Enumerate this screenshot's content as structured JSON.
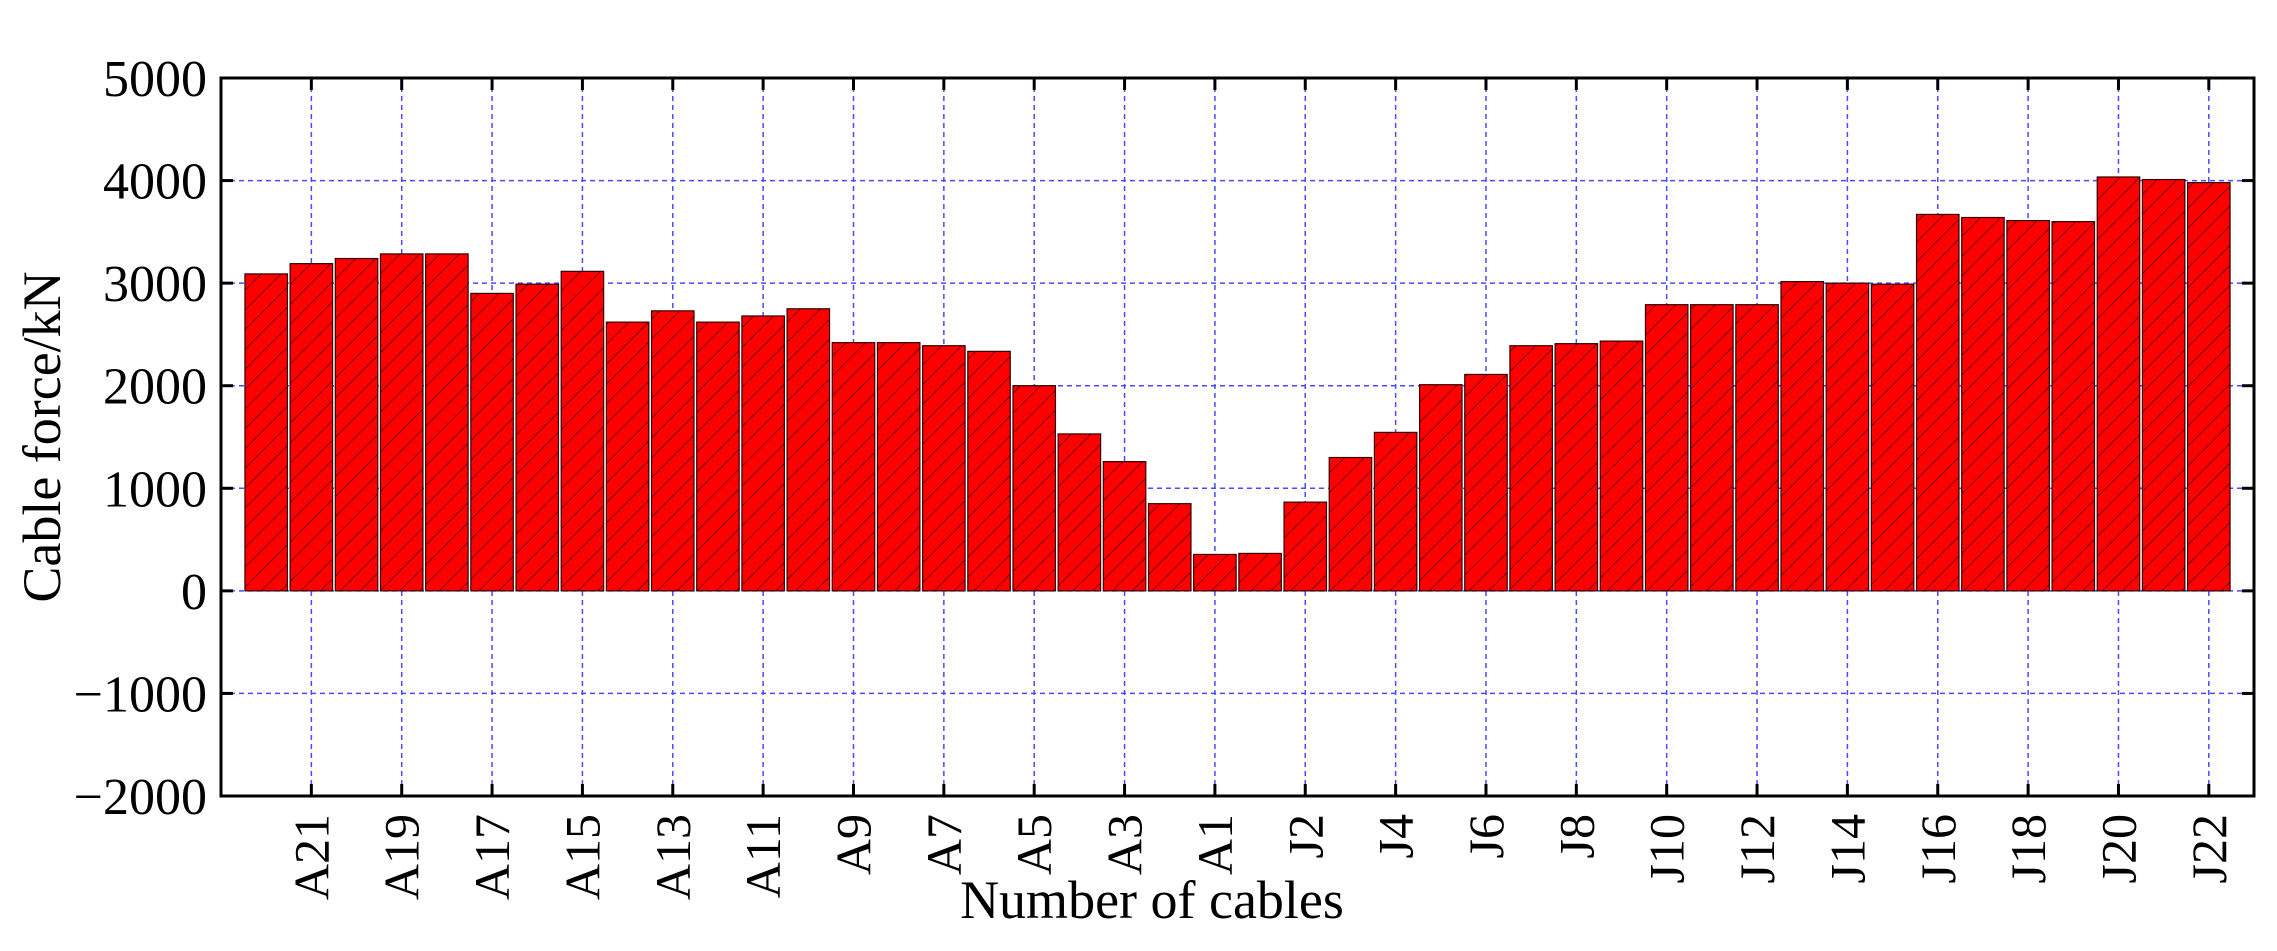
{
  "chart_data": {
    "type": "bar",
    "x_label": "Number of cables",
    "y_label": "Cable force/kN",
    "categories": [
      null,
      "A21",
      null,
      "A19",
      null,
      "A17",
      null,
      "A15",
      null,
      "A13",
      null,
      "A11",
      null,
      "A9",
      null,
      "A7",
      null,
      "A5",
      null,
      "A3",
      null,
      "A1",
      null,
      "J2",
      null,
      "J4",
      null,
      "J6",
      null,
      "J8",
      null,
      "J10",
      null,
      "J12",
      null,
      "J14",
      null,
      "J16",
      null,
      "J18",
      null,
      "J20",
      null,
      "J22"
    ],
    "values": [
      3090,
      3190,
      3240,
      3285,
      3285,
      2900,
      2990,
      3115,
      2620,
      2730,
      2620,
      2680,
      2750,
      2420,
      2420,
      2390,
      2335,
      2000,
      1530,
      1260,
      850,
      355,
      365,
      865,
      1300,
      1545,
      2010,
      2110,
      2390,
      2410,
      2435,
      2790,
      2790,
      2790,
      3015,
      3000,
      2990,
      3670,
      3640,
      3610,
      3600,
      4035,
      4010,
      3980
    ],
    "color": "#ff0000",
    "ylim": [
      -2000,
      5000
    ],
    "yticks": [
      {
        "value": -2000,
        "label": "−2000"
      },
      {
        "value": -1000,
        "label": "−1000"
      },
      0,
      1000,
      2000,
      3000,
      4000,
      5000
    ],
    "grid": true
  }
}
